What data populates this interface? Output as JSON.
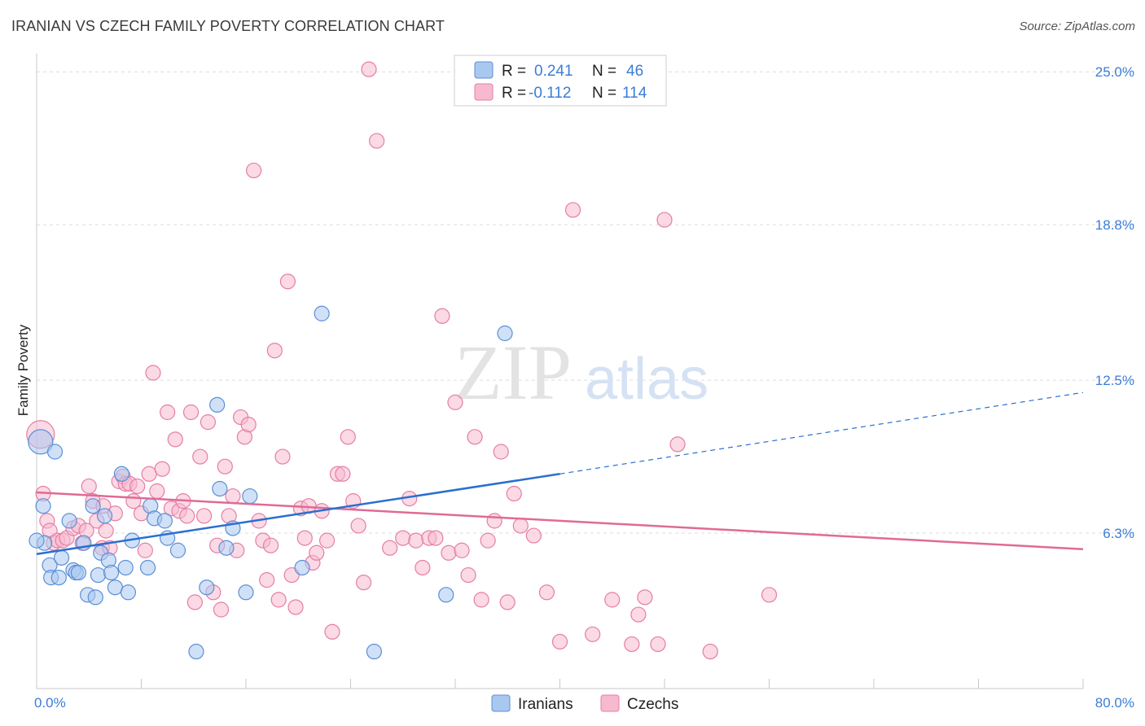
{
  "title": "IRANIAN VS CZECH FAMILY POVERTY CORRELATION CHART",
  "source": "Source: ZipAtlas.com",
  "watermark": {
    "zip": "ZIP",
    "atlas": "atlas"
  },
  "colors": {
    "iranians_fill": "#a9c8f0",
    "iranians_stroke": "#5b8fd6",
    "iranians_line": "#2a6fd1",
    "czechs_fill": "#f7b9cf",
    "czechs_stroke": "#e57ea4",
    "czechs_line": "#e06a96",
    "axis_label": "#3b7dd8",
    "grid": "#dcdcdc"
  },
  "legend": {
    "rows": [
      {
        "r_label": "R =",
        "r_value": "0.241",
        "n_label": "N =",
        "n_value": "46"
      },
      {
        "r_label": "R =",
        "r_value": "-0.112",
        "n_label": "N =",
        "n_value": "114"
      }
    ]
  },
  "chart_data": {
    "type": "scatter",
    "ylabel": "Family Poverty",
    "xlabel": "",
    "xlim": [
      0,
      80
    ],
    "ylim": [
      0,
      25.6
    ],
    "x_tick_labels": [
      "0.0%",
      "80.0%"
    ],
    "y_ticks": [
      6.3,
      12.5,
      18.8,
      25.0
    ],
    "y_tick_labels": [
      "6.3%",
      "12.5%",
      "18.8%",
      "25.0%"
    ],
    "grid": true,
    "legend_position": "top-center",
    "series": [
      {
        "name": "Iranians",
        "points": [
          [
            0.3,
            10.0
          ],
          [
            0.5,
            7.4
          ],
          [
            0.6,
            5.9
          ],
          [
            1.0,
            5.0
          ],
          [
            1.1,
            4.5
          ],
          [
            1.4,
            9.6
          ],
          [
            1.7,
            4.5
          ],
          [
            1.9,
            5.3
          ],
          [
            2.5,
            6.8
          ],
          [
            2.8,
            4.8
          ],
          [
            3.0,
            4.7
          ],
          [
            3.2,
            4.7
          ],
          [
            3.6,
            5.9
          ],
          [
            3.9,
            3.8
          ],
          [
            4.3,
            7.4
          ],
          [
            4.5,
            3.7
          ],
          [
            4.7,
            4.6
          ],
          [
            4.9,
            5.5
          ],
          [
            5.2,
            7.0
          ],
          [
            5.5,
            5.2
          ],
          [
            5.7,
            4.7
          ],
          [
            6.0,
            4.1
          ],
          [
            6.5,
            8.7
          ],
          [
            6.8,
            4.9
          ],
          [
            7.0,
            3.9
          ],
          [
            7.3,
            6.0
          ],
          [
            8.5,
            4.9
          ],
          [
            8.7,
            7.4
          ],
          [
            9.0,
            6.9
          ],
          [
            9.8,
            6.8
          ],
          [
            10.0,
            6.1
          ],
          [
            10.8,
            5.6
          ],
          [
            12.2,
            1.5
          ],
          [
            13.0,
            4.1
          ],
          [
            13.8,
            11.5
          ],
          [
            14.0,
            8.1
          ],
          [
            14.5,
            5.7
          ],
          [
            15.0,
            6.5
          ],
          [
            16.0,
            3.9
          ],
          [
            16.3,
            7.8
          ],
          [
            20.3,
            4.9
          ],
          [
            21.8,
            15.2
          ],
          [
            25.8,
            1.5
          ],
          [
            31.3,
            3.8
          ],
          [
            35.8,
            14.4
          ],
          [
            0.0,
            6.0
          ]
        ],
        "trend": {
          "x": [
            0,
            40
          ],
          "y": [
            5.45,
            8.7
          ]
        },
        "trend_dashed": {
          "x": [
            40,
            80
          ],
          "y": [
            8.7,
            12.0
          ]
        }
      },
      {
        "name": "Czechs",
        "points": [
          [
            0.3,
            10.3
          ],
          [
            0.5,
            7.9
          ],
          [
            0.8,
            6.8
          ],
          [
            1.0,
            6.4
          ],
          [
            1.3,
            5.9
          ],
          [
            1.6,
            6.0
          ],
          [
            2.0,
            6.0
          ],
          [
            2.3,
            6.1
          ],
          [
            2.8,
            6.5
          ],
          [
            3.2,
            6.6
          ],
          [
            3.5,
            5.9
          ],
          [
            3.8,
            6.4
          ],
          [
            4.0,
            8.2
          ],
          [
            4.3,
            7.6
          ],
          [
            4.6,
            6.8
          ],
          [
            5.0,
            5.7
          ],
          [
            5.1,
            7.4
          ],
          [
            5.3,
            6.4
          ],
          [
            5.6,
            5.7
          ],
          [
            6.0,
            7.1
          ],
          [
            6.3,
            8.4
          ],
          [
            6.6,
            8.6
          ],
          [
            6.8,
            8.3
          ],
          [
            7.1,
            8.3
          ],
          [
            7.4,
            7.6
          ],
          [
            7.7,
            8.2
          ],
          [
            8.0,
            7.1
          ],
          [
            8.3,
            5.6
          ],
          [
            8.6,
            8.7
          ],
          [
            8.9,
            12.8
          ],
          [
            9.2,
            8.0
          ],
          [
            9.6,
            8.9
          ],
          [
            10.0,
            11.2
          ],
          [
            10.3,
            7.3
          ],
          [
            10.6,
            10.1
          ],
          [
            10.9,
            7.2
          ],
          [
            11.2,
            7.6
          ],
          [
            11.5,
            7.0
          ],
          [
            11.8,
            11.2
          ],
          [
            12.1,
            3.5
          ],
          [
            12.5,
            9.4
          ],
          [
            12.8,
            7.0
          ],
          [
            13.1,
            10.8
          ],
          [
            13.5,
            3.9
          ],
          [
            13.8,
            5.8
          ],
          [
            14.1,
            3.2
          ],
          [
            14.4,
            9.0
          ],
          [
            14.7,
            7.0
          ],
          [
            15.0,
            7.8
          ],
          [
            15.3,
            5.6
          ],
          [
            15.6,
            11.0
          ],
          [
            15.9,
            10.2
          ],
          [
            16.2,
            10.7
          ],
          [
            16.6,
            21.0
          ],
          [
            17.0,
            6.8
          ],
          [
            17.3,
            6.0
          ],
          [
            17.6,
            4.4
          ],
          [
            17.9,
            5.8
          ],
          [
            18.2,
            13.7
          ],
          [
            18.5,
            3.6
          ],
          [
            18.8,
            9.4
          ],
          [
            19.2,
            16.5
          ],
          [
            19.5,
            4.6
          ],
          [
            19.8,
            3.3
          ],
          [
            20.2,
            7.3
          ],
          [
            20.5,
            6.1
          ],
          [
            20.8,
            7.4
          ],
          [
            21.1,
            5.1
          ],
          [
            21.4,
            5.5
          ],
          [
            21.8,
            7.2
          ],
          [
            22.2,
            6.0
          ],
          [
            22.6,
            2.3
          ],
          [
            23.0,
            8.7
          ],
          [
            23.4,
            8.7
          ],
          [
            23.8,
            10.2
          ],
          [
            24.2,
            7.6
          ],
          [
            24.6,
            6.6
          ],
          [
            25.0,
            4.3
          ],
          [
            25.4,
            25.1
          ],
          [
            26.0,
            22.2
          ],
          [
            27.0,
            5.7
          ],
          [
            28.0,
            6.1
          ],
          [
            28.5,
            7.7
          ],
          [
            29.0,
            6.0
          ],
          [
            29.5,
            4.9
          ],
          [
            30.0,
            6.1
          ],
          [
            30.5,
            6.1
          ],
          [
            31.0,
            15.1
          ],
          [
            31.5,
            5.5
          ],
          [
            32.0,
            11.6
          ],
          [
            32.5,
            5.6
          ],
          [
            33.0,
            4.6
          ],
          [
            33.5,
            10.2
          ],
          [
            34.0,
            3.6
          ],
          [
            34.5,
            6.0
          ],
          [
            35.0,
            6.8
          ],
          [
            35.5,
            9.6
          ],
          [
            36.0,
            3.5
          ],
          [
            36.5,
            7.9
          ],
          [
            37.0,
            6.6
          ],
          [
            38.0,
            6.2
          ],
          [
            39.0,
            3.9
          ],
          [
            40.0,
            1.9
          ],
          [
            41.0,
            19.4
          ],
          [
            42.5,
            2.2
          ],
          [
            44.0,
            3.6
          ],
          [
            45.5,
            1.8
          ],
          [
            46.0,
            3.0
          ],
          [
            46.5,
            3.7
          ],
          [
            47.5,
            1.8
          ],
          [
            48.0,
            19.0
          ],
          [
            49.0,
            9.9
          ],
          [
            51.5,
            1.5
          ],
          [
            56.0,
            3.8
          ]
        ],
        "trend": {
          "x": [
            0,
            80
          ],
          "y": [
            7.95,
            5.65
          ]
        }
      }
    ]
  },
  "bottom_legend": [
    {
      "label": "Iranians"
    },
    {
      "label": "Czechs"
    }
  ]
}
